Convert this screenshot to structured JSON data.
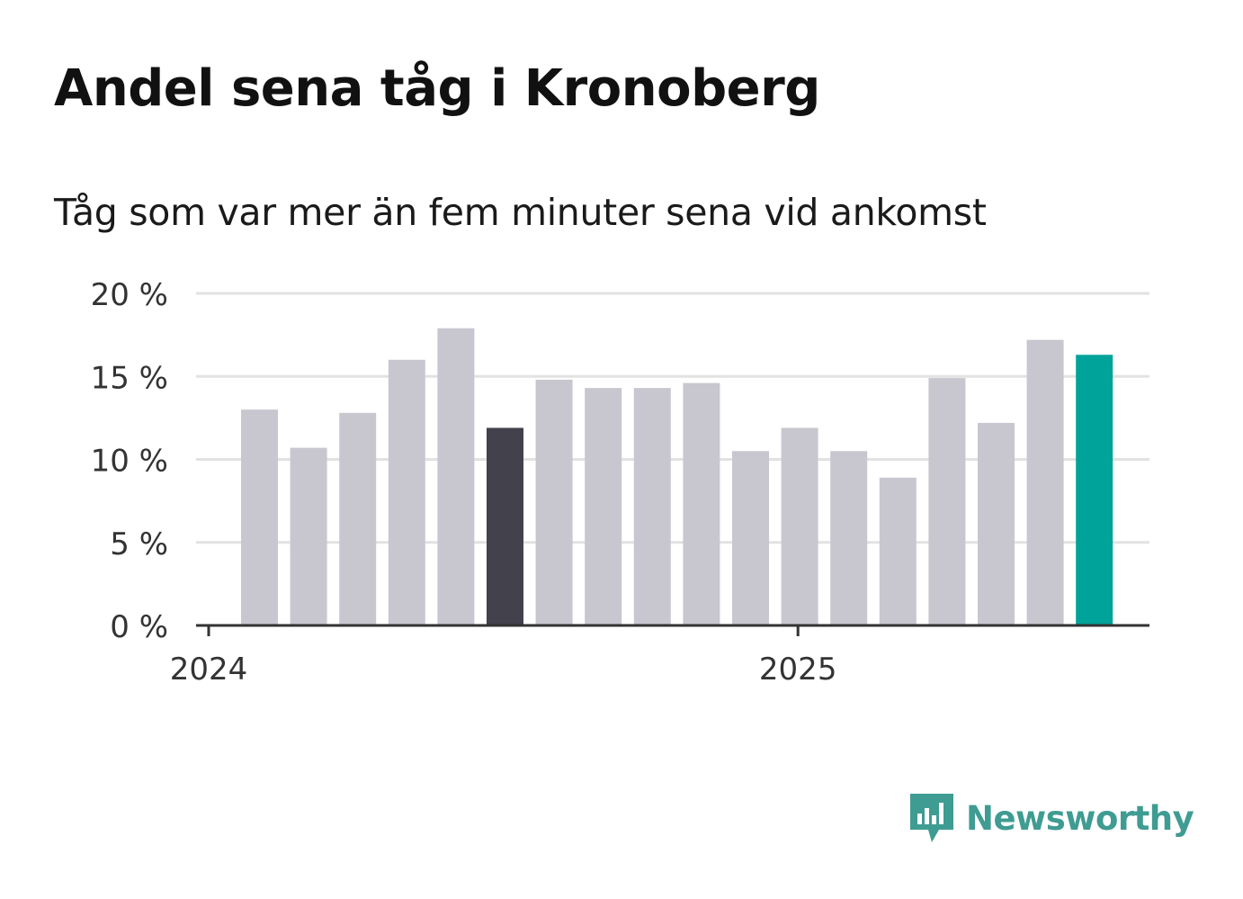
{
  "title": "Andel sena tåg i Kronoberg",
  "subtitle": "Tåg som var mer än fem minuter sena vid ankomst",
  "brand": {
    "name": "Newsworthy",
    "icon": "newsworthy-logo-icon"
  },
  "colors": {
    "bar": "#c8c7cf",
    "highlight": "#42414c",
    "latest": "#00a39a",
    "grid": "#e2e2e2",
    "axis": "#333333",
    "brand": "#3f9c92"
  },
  "chart_data": {
    "type": "bar",
    "title": "Andel sena tåg i Kronoberg",
    "subtitle": "Tåg som var mer än fem minuter sena vid ankomst",
    "ylim": [
      0,
      20
    ],
    "y_ticks": [
      0,
      5,
      10,
      15,
      20
    ],
    "y_tick_labels": [
      "0 %",
      "5 %",
      "10 %",
      "15 %",
      "20 %"
    ],
    "x_tick_labels": [
      {
        "label": "2024",
        "index": 0
      },
      {
        "label": "2025",
        "index": 12
      }
    ],
    "grid": true,
    "values": [
      13.0,
      10.7,
      12.8,
      16.0,
      17.9,
      11.9,
      14.8,
      14.3,
      14.3,
      14.6,
      10.5,
      11.9,
      10.5,
      8.9,
      14.9,
      12.2,
      17.2,
      16.3
    ],
    "highlight_index": 5,
    "latest_index": 17
  }
}
